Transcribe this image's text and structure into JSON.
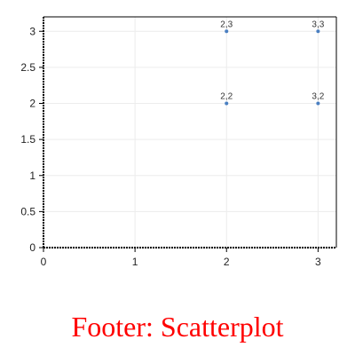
{
  "chart_data": {
    "type": "scatter",
    "title": "",
    "xlabel": "",
    "ylabel": "",
    "xlim": [
      0,
      3.2
    ],
    "ylim": [
      0,
      3.2
    ],
    "x_ticks": [
      0,
      1,
      2,
      3
    ],
    "y_ticks": [
      0,
      0.5,
      1,
      1.5,
      2,
      2.5,
      3
    ],
    "x_tick_labels": [
      "0",
      "1",
      "2",
      "3"
    ],
    "y_tick_labels": [
      "0",
      "0.5",
      "1",
      "1.5",
      "2",
      "2.5",
      "3"
    ],
    "grid": true,
    "series": [
      {
        "color": "#4a7fc1",
        "points": [
          {
            "x": 2,
            "y": 3,
            "label": "2,3"
          },
          {
            "x": 3,
            "y": 3,
            "label": "3,3"
          },
          {
            "x": 2,
            "y": 2,
            "label": "2,2"
          },
          {
            "x": 3,
            "y": 2,
            "label": "3,2"
          }
        ]
      }
    ]
  },
  "footer": {
    "text": "Footer: Scatterplot"
  }
}
